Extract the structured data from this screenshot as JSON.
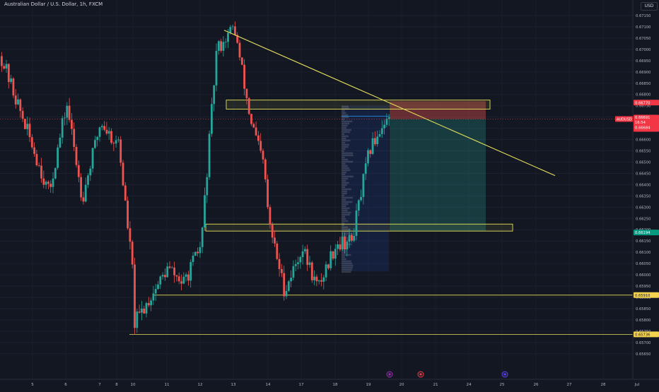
{
  "header": {
    "title": "Australian Dollar / U.S. Dollar, 1h, FXCM",
    "currency": "USD"
  },
  "price_tags": {
    "symbol": "AUDUSD",
    "current": "0.66691",
    "countdown": "16:54",
    "below": "0.66684",
    "stop": "0.66770",
    "green": "0.66194",
    "support_upper": "0.65910",
    "support_lower": "0.65736"
  },
  "colors": {
    "background": "#131722",
    "up": "#26a69a",
    "down": "#ef5350",
    "zone": "#e6e15a",
    "trendline": "#e6e15a",
    "stop_zone": "#ef5350",
    "target_zone": "#26a69a",
    "current_tag": "#f23645",
    "green_tag": "#089981",
    "support_tag": "#f5d34f"
  },
  "chart_data": {
    "type": "candlestick",
    "title": "Australian Dollar / U.S. Dollar, 1h, FXCM",
    "x_ticks": [
      "5",
      "6",
      "7",
      "8",
      "10",
      "11",
      "12",
      "13",
      "14",
      "17",
      "18",
      "19",
      "20",
      "21",
      "24",
      "25",
      "26",
      "27",
      "28",
      "Jul"
    ],
    "y_ticks": [
      "0.67150",
      "0.67100",
      "0.67050",
      "0.67000",
      "0.66950",
      "0.66900",
      "0.66850",
      "0.66800",
      "0.66750",
      "0.66700",
      "0.66650",
      "0.66600",
      "0.66550",
      "0.66500",
      "0.66450",
      "0.66400",
      "0.66350",
      "0.66300",
      "0.66250",
      "0.66200",
      "0.66150",
      "0.66100",
      "0.66050",
      "0.66000",
      "0.65950",
      "0.65900",
      "0.65850",
      "0.65800",
      "0.65750",
      "0.65700",
      "0.65650"
    ],
    "ylim": [
      0.6564,
      0.672
    ],
    "price_path": [
      {
        "x": "5",
        "y": 0.6697
      },
      {
        "x": "5",
        "y": 0.6636
      },
      {
        "x": "6",
        "y": 0.6676
      },
      {
        "x": "6",
        "y": 0.6634
      },
      {
        "x": "7",
        "y": 0.6668
      },
      {
        "x": "7",
        "y": 0.6658
      },
      {
        "x": "8",
        "y": 0.6663
      },
      {
        "x": "8",
        "y": 0.6599
      },
      {
        "x": "10",
        "y": 0.6578
      },
      {
        "x": "11",
        "y": 0.6603
      },
      {
        "x": "11",
        "y": 0.6596
      },
      {
        "x": "12",
        "y": 0.6613
      },
      {
        "x": "12",
        "y": 0.67
      },
      {
        "x": "13",
        "y": 0.671
      },
      {
        "x": "13",
        "y": 0.667
      },
      {
        "x": "13",
        "y": 0.6648
      },
      {
        "x": "14",
        "y": 0.6623
      },
      {
        "x": "14",
        "y": 0.6593
      },
      {
        "x": "17",
        "y": 0.6612
      },
      {
        "x": "17",
        "y": 0.6594
      },
      {
        "x": "18",
        "y": 0.6614
      },
      {
        "x": "18",
        "y": 0.6615
      },
      {
        "x": "19",
        "y": 0.6655
      },
      {
        "x": "19",
        "y": 0.6669
      }
    ],
    "trendline": {
      "from": {
        "x": "12",
        "y": 0.67085
      },
      "to": {
        "x": "26",
        "y": 0.6644
      }
    },
    "resistance_zone": {
      "from_x": "12",
      "to_x": "24",
      "top": 0.66775,
      "bottom": 0.66735
    },
    "support_zone": {
      "from_x": "12",
      "to_x": "25",
      "top": 0.66225,
      "bottom": 0.66194
    },
    "horizontal_lines": [
      0.6591,
      0.65736
    ],
    "position": {
      "from_x": "19",
      "to_x": "24",
      "stop": 0.6677,
      "entry": 0.66691,
      "target": 0.66194
    },
    "volume_profile": {
      "from_x": "18",
      "to_x": "19",
      "top": 0.6675,
      "bottom": 0.66015
    },
    "current_price": 0.66691
  }
}
